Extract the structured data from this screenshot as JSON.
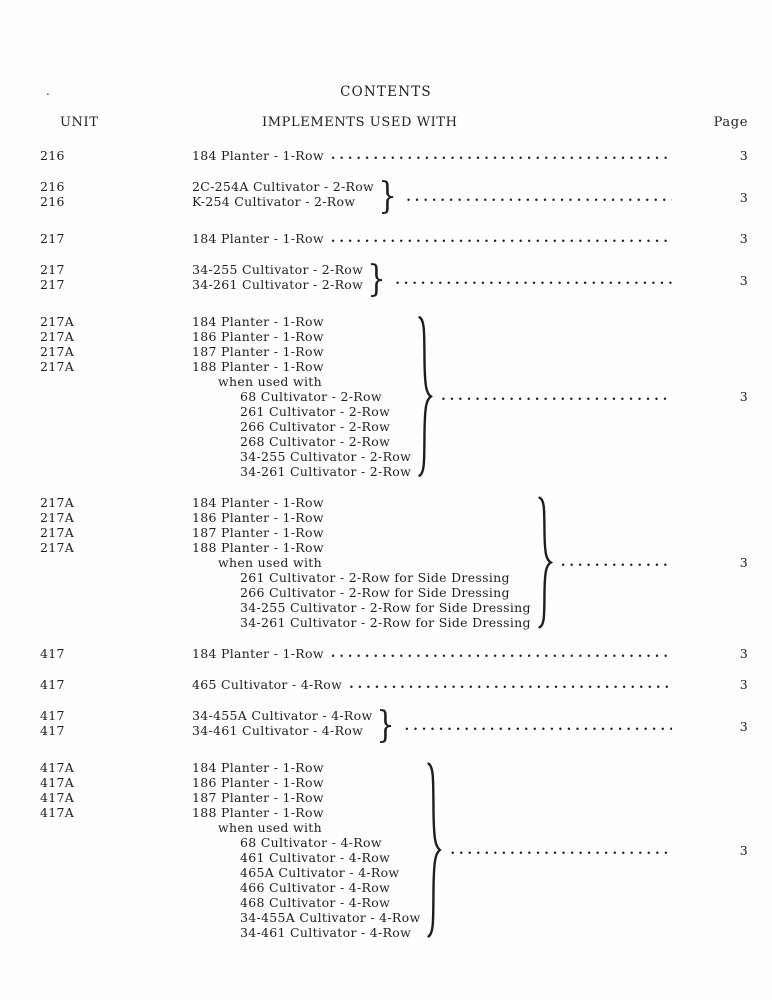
{
  "doc": {
    "stray_mark": ".",
    "title": "CONTENTS",
    "headers": {
      "unit": "UNIT",
      "implements": "IMPLEMENTS USED WITH",
      "page": "Page"
    },
    "brace_char": "}",
    "entries": [
      {
        "units": [
          "216"
        ],
        "lines": [
          {
            "indent": 0,
            "text": "184 Planter - 1-Row"
          }
        ],
        "brace": "none",
        "page": "3"
      },
      {
        "units": [
          "216",
          "216"
        ],
        "lines": [
          {
            "indent": 0,
            "text": "2C-254A Cultivator - 2-Row"
          },
          {
            "indent": 0,
            "text": "K-254 Cultivator - 2-Row"
          }
        ],
        "brace": "small",
        "page": "3"
      },
      {
        "units": [
          "217"
        ],
        "lines": [
          {
            "indent": 0,
            "text": "184 Planter - 1-Row"
          }
        ],
        "brace": "none",
        "page": "3"
      },
      {
        "units": [
          "217",
          "217"
        ],
        "lines": [
          {
            "indent": 0,
            "text": "34-255 Cultivator - 2-Row"
          },
          {
            "indent": 0,
            "text": "34-261 Cultivator - 2-Row"
          }
        ],
        "brace": "small",
        "page": "3"
      },
      {
        "units": [
          "217A",
          "217A",
          "217A",
          "217A"
        ],
        "lines": [
          {
            "indent": 0,
            "text": "184 Planter - 1-Row"
          },
          {
            "indent": 0,
            "text": "186 Planter - 1-Row"
          },
          {
            "indent": 0,
            "text": "187 Planter - 1-Row"
          },
          {
            "indent": 0,
            "text": "188 Planter - 1-Row"
          },
          {
            "indent": 1,
            "text": "when used with"
          },
          {
            "indent": 2,
            "text": "68 Cultivator - 2-Row"
          },
          {
            "indent": 2,
            "text": "261 Cultivator - 2-Row"
          },
          {
            "indent": 2,
            "text": "266 Cultivator - 2-Row"
          },
          {
            "indent": 2,
            "text": "268 Cultivator - 2-Row"
          },
          {
            "indent": 2,
            "text": "34-255 Cultivator - 2-Row"
          },
          {
            "indent": 2,
            "text": "34-261 Cultivator - 2-Row"
          }
        ],
        "brace": "large",
        "page": "3"
      },
      {
        "units": [
          "217A",
          "217A",
          "217A",
          "217A"
        ],
        "lines": [
          {
            "indent": 0,
            "text": "184 Planter - 1-Row"
          },
          {
            "indent": 0,
            "text": "186 Planter - 1-Row"
          },
          {
            "indent": 0,
            "text": "187 Planter - 1-Row"
          },
          {
            "indent": 0,
            "text": "188 Planter - 1-Row"
          },
          {
            "indent": 1,
            "text": "when used with"
          },
          {
            "indent": 2,
            "text": "261 Cultivator - 2-Row for Side Dressing"
          },
          {
            "indent": 2,
            "text": "266 Cultivator - 2-Row for Side Dressing"
          },
          {
            "indent": 2,
            "text": "34-255 Cultivator - 2-Row for Side Dressing"
          },
          {
            "indent": 2,
            "text": "34-261 Cultivator - 2-Row for Side Dressing"
          }
        ],
        "brace": "large",
        "page": "3"
      },
      {
        "units": [
          "417"
        ],
        "lines": [
          {
            "indent": 0,
            "text": "184 Planter - 1-Row"
          }
        ],
        "brace": "none",
        "page": "3"
      },
      {
        "units": [
          "417"
        ],
        "lines": [
          {
            "indent": 0,
            "text": "465 Cultivator - 4-Row"
          }
        ],
        "brace": "none",
        "page": "3"
      },
      {
        "units": [
          "417",
          "417"
        ],
        "lines": [
          {
            "indent": 0,
            "text": "34-455A Cultivator - 4-Row"
          },
          {
            "indent": 0,
            "text": "34-461 Cultivator - 4-Row"
          }
        ],
        "brace": "small",
        "page": "3"
      },
      {
        "units": [
          "417A",
          "417A",
          "417A",
          "417A"
        ],
        "lines": [
          {
            "indent": 0,
            "text": "184 Planter - 1-Row"
          },
          {
            "indent": 0,
            "text": "186 Planter - 1-Row"
          },
          {
            "indent": 0,
            "text": "187 Planter - 1-Row"
          },
          {
            "indent": 0,
            "text": "188 Planter - 1-Row"
          },
          {
            "indent": 1,
            "text": "when used with"
          },
          {
            "indent": 2,
            "text": "68 Cultivator - 4-Row"
          },
          {
            "indent": 2,
            "text": "461 Cultivator - 4-Row"
          },
          {
            "indent": 2,
            "text": "465A Cultivator - 4-Row"
          },
          {
            "indent": 2,
            "text": "466 Cultivator - 4-Row"
          },
          {
            "indent": 2,
            "text": "468 Cultivator - 4-Row"
          },
          {
            "indent": 2,
            "text": "34-455A Cultivator - 4-Row"
          },
          {
            "indent": 2,
            "text": "34-461 Cultivator - 4-Row"
          }
        ],
        "brace": "large",
        "page": "3"
      }
    ]
  }
}
